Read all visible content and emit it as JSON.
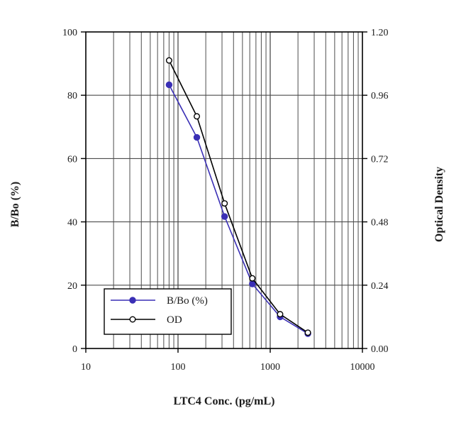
{
  "chart_data": {
    "type": "line",
    "xlabel": "LTC4 Conc. (pg/mL)",
    "ylabel": "B/Bo (%)",
    "y2label": "Optical Density",
    "x_scale": "log",
    "xlim": [
      10,
      10000
    ],
    "ylim": [
      0,
      100
    ],
    "y2lim": [
      0,
      1.2
    ],
    "grid": true,
    "legend_position": "bottom-left",
    "x_ticks": [
      "10",
      "100",
      "1000",
      "10000"
    ],
    "y_ticks": [
      "0",
      "20",
      "40",
      "60",
      "80",
      "100"
    ],
    "y2_ticks": [
      "0.00",
      "0.24",
      "0.48",
      "0.72",
      "0.96",
      "1.20"
    ],
    "x": [
      80,
      160,
      320,
      640,
      1280,
      2560
    ],
    "series": [
      {
        "name": "B/Bo (%)",
        "axis": "left",
        "color": "#3a2fb5",
        "marker": "filled-circle",
        "values": [
          83.3,
          66.7,
          41.7,
          20.4,
          10.0,
          4.7
        ]
      },
      {
        "name": "OD",
        "axis": "right",
        "color": "#000000",
        "marker": "open-circle",
        "values": [
          1.092,
          0.88,
          0.55,
          0.266,
          0.13,
          0.06
        ]
      }
    ]
  }
}
